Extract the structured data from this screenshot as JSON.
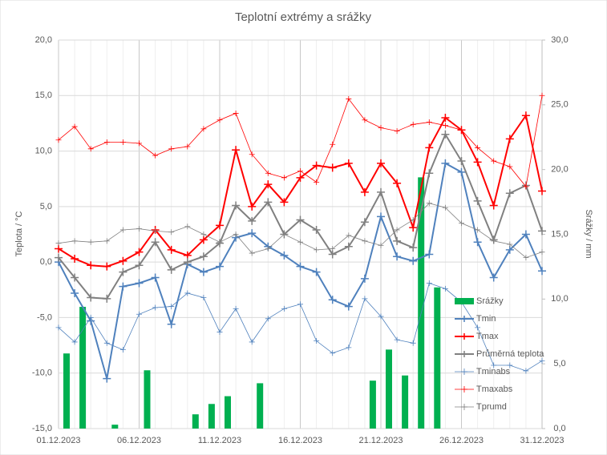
{
  "chart_data": {
    "type": "line",
    "title": "Teplotní extrémy a srážky",
    "y_label": "Teplota / °C",
    "y2_label": "Srážky / mm",
    "categories": [
      "01.12.2023",
      null,
      null,
      null,
      null,
      "06.12.2023",
      null,
      null,
      null,
      null,
      "11.12.2023",
      null,
      null,
      null,
      null,
      "16.12.2023",
      null,
      null,
      null,
      null,
      "21.12.2023",
      null,
      null,
      null,
      null,
      "26.12.2023",
      null,
      null,
      null,
      null,
      "31.12.2023"
    ],
    "ylim": [
      -15,
      20
    ],
    "yticks": [
      {
        "value": -15,
        "label": "-15,0"
      },
      {
        "value": -10,
        "label": "-10,0"
      },
      {
        "value": -5,
        "label": "-5,0"
      },
      {
        "value": 0,
        "label": "0,0"
      },
      {
        "value": 5,
        "label": "5,0"
      },
      {
        "value": 10,
        "label": "10,0"
      },
      {
        "value": 15,
        "label": "15,0"
      },
      {
        "value": 20,
        "label": "20,0"
      }
    ],
    "y2lim": [
      0,
      30
    ],
    "y2ticks": [
      {
        "value": 0,
        "label": "0,0"
      },
      {
        "value": 5,
        "label": "5,0"
      },
      {
        "value": 10,
        "label": "10,0"
      },
      {
        "value": 15,
        "label": "15,0"
      },
      {
        "value": 20,
        "label": "20,0"
      },
      {
        "value": 25,
        "label": "25,0"
      },
      {
        "value": 30,
        "label": "30,0"
      }
    ],
    "grid": true,
    "legend_position": "right",
    "series": [
      {
        "name": "Srážky",
        "type": "bar",
        "axis": "y2",
        "color": "#00b050",
        "values": [
          5.8,
          9.4,
          0,
          0.3,
          0,
          4.5,
          0,
          0,
          1.1,
          1.9,
          2.5,
          0,
          3.5,
          0,
          0,
          0,
          0,
          0,
          0,
          3.7,
          6.1,
          4.1,
          19.4,
          10.9,
          0,
          0,
          0,
          0,
          0,
          0,
          0
        ]
      },
      {
        "name": "Tmin",
        "type": "line",
        "color": "#4f81bd",
        "width": 2,
        "values": [
          0.0,
          -2.8,
          -5.3,
          -10.5,
          -2.2,
          -1.9,
          -1.4,
          -5.6,
          -0.2,
          -0.9,
          -0.4,
          2.2,
          2.6,
          1.4,
          0.6,
          -0.4,
          -0.9,
          -3.4,
          -4.0,
          -1.5,
          4.1,
          0.5,
          0.1,
          0.7,
          8.9,
          8.1,
          1.8,
          -1.4,
          1.1,
          2.5,
          -0.8
        ]
      },
      {
        "name": "Tmax",
        "type": "line",
        "color": "#ff0000",
        "width": 2,
        "values": [
          1.2,
          0.3,
          -0.3,
          -0.4,
          0.1,
          0.9,
          2.9,
          1.1,
          0.6,
          2.0,
          3.3,
          10.1,
          5.0,
          7.0,
          5.4,
          7.6,
          8.7,
          8.5,
          8.9,
          6.3,
          8.9,
          7.1,
          3.1,
          10.3,
          13.0,
          11.9,
          9.0,
          5.1,
          11.1,
          13.2,
          6.4
        ]
      },
      {
        "name": "Průměrná teplota",
        "type": "line",
        "color": "#808080",
        "width": 2,
        "values": [
          0.4,
          -1.4,
          -3.2,
          -3.3,
          -0.9,
          -0.3,
          1.8,
          -0.7,
          0.0,
          0.5,
          1.7,
          5.1,
          3.7,
          5.4,
          2.5,
          3.8,
          2.9,
          0.7,
          1.4,
          3.6,
          6.3,
          1.9,
          1.3,
          8.0,
          11.5,
          9.1,
          5.5,
          2.0,
          6.2,
          6.9,
          2.8
        ]
      },
      {
        "name": "Tminabs",
        "type": "line",
        "color": "#4f81bd",
        "width": 0.8,
        "values": [
          -5.9,
          -7.2,
          -5.0,
          -7.3,
          -7.9,
          -4.7,
          -4.1,
          -4.0,
          -2.8,
          -3.2,
          -6.3,
          -4.2,
          -7.2,
          -5.1,
          -4.2,
          -3.8,
          -7.1,
          -8.2,
          -7.7,
          -3.3,
          -4.9,
          -7.0,
          -7.3,
          -1.9,
          -2.4,
          -3.6,
          -5.9,
          -9.3,
          -9.3,
          -9.8,
          -8.9
        ]
      },
      {
        "name": "Tmaxabs",
        "type": "line",
        "color": "#ff0000",
        "width": 0.8,
        "values": [
          11.0,
          12.2,
          10.2,
          10.8,
          10.8,
          10.7,
          9.6,
          10.2,
          10.4,
          12.0,
          12.8,
          13.4,
          9.7,
          8.0,
          7.6,
          8.2,
          7.2,
          10.6,
          14.7,
          12.8,
          12.1,
          11.8,
          12.4,
          12.6,
          12.3,
          11.9,
          10.3,
          9.1,
          8.6,
          6.8,
          15.0
        ]
      },
      {
        "name": "Tprumd",
        "type": "line",
        "color": "#808080",
        "width": 0.8,
        "values": [
          1.7,
          1.9,
          1.8,
          1.9,
          2.9,
          3.0,
          2.8,
          2.7,
          3.2,
          2.5,
          1.8,
          2.5,
          0.8,
          1.2,
          2.5,
          1.8,
          1.1,
          1.2,
          2.4,
          1.9,
          1.5,
          2.9,
          3.8,
          5.3,
          4.9,
          3.5,
          2.9,
          1.9,
          1.6,
          0.4,
          0.9
        ]
      }
    ]
  }
}
